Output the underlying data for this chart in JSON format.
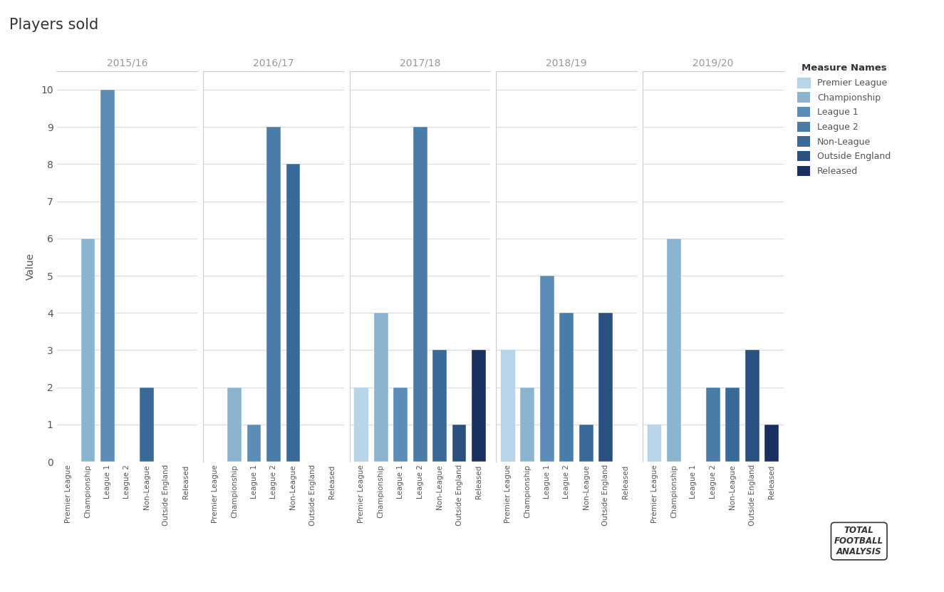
{
  "title": "Players sold",
  "ylabel": "Value",
  "seasons": [
    "2015/16",
    "2016/17",
    "2017/18",
    "2018/19",
    "2019/20"
  ],
  "categories": [
    "Premier League",
    "Championship",
    "League 1",
    "League 2",
    "Non-League",
    "Outside England",
    "Released"
  ],
  "colors": [
    "#b8d4e8",
    "#8ab4d0",
    "#5b8db8",
    "#4a7ca8",
    "#3a6a98",
    "#2a5080",
    "#1a3060"
  ],
  "data": {
    "2015/16": [
      0,
      6,
      10,
      0,
      2,
      0,
      0
    ],
    "2016/17": [
      0,
      2,
      1,
      9,
      8,
      0,
      0
    ],
    "2017/18": [
      2,
      4,
      2,
      9,
      3,
      1,
      3
    ],
    "2018/19": [
      3,
      2,
      5,
      4,
      1,
      4,
      0
    ],
    "2019/20": [
      1,
      6,
      0,
      2,
      2,
      3,
      1
    ]
  },
  "background_color": "#ffffff",
  "grid_color": "#d8d8d8",
  "ylim": [
    0,
    10.5
  ],
  "yticks": [
    0,
    1,
    2,
    3,
    4,
    5,
    6,
    7,
    8,
    9,
    10
  ],
  "season_header_color": "#999999",
  "title_fontsize": 15,
  "axis_label_fontsize": 10,
  "tick_fontsize": 9,
  "bar_width": 0.72,
  "separator_color": "#cccccc"
}
